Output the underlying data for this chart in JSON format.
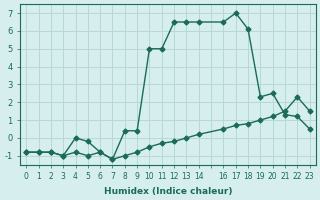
{
  "xlabel": "Humidex (Indice chaleur)",
  "ylabel": "",
  "bg_color": "#d6eeee",
  "grid_color": "#b8d8d8",
  "line_color": "#1a6b5a",
  "series1_x": [
    0,
    1,
    2,
    3,
    4,
    5,
    6,
    7,
    8,
    9,
    10,
    11,
    12,
    13,
    14,
    16,
    17,
    18,
    19,
    20,
    21,
    22,
    23
  ],
  "series1_y": [
    -0.8,
    -0.8,
    -0.8,
    -1.0,
    0.0,
    -0.2,
    -0.8,
    -1.2,
    0.4,
    0.4,
    5.0,
    5.0,
    6.5,
    6.5,
    6.5,
    6.5,
    7.0,
    6.1,
    2.3,
    2.5,
    1.3,
    1.2,
    0.5
  ],
  "series2_x": [
    0,
    1,
    2,
    3,
    4,
    5,
    6,
    7,
    8,
    9,
    10,
    11,
    12,
    13,
    14,
    16,
    17,
    18,
    19,
    20,
    21,
    22,
    23
  ],
  "series2_y": [
    -0.8,
    -0.8,
    -0.8,
    -1.0,
    -0.8,
    -1.0,
    -0.8,
    -1.2,
    -1.0,
    -0.8,
    -0.5,
    -0.3,
    -0.2,
    0.0,
    0.2,
    0.5,
    0.7,
    0.8,
    1.0,
    1.2,
    1.5,
    2.3,
    1.5
  ],
  "ylim": [
    -1.5,
    7.5
  ],
  "yticks": [
    -1,
    0,
    1,
    2,
    3,
    4,
    5,
    6,
    7
  ],
  "xticks": [
    0,
    1,
    2,
    3,
    4,
    5,
    6,
    7,
    8,
    9,
    10,
    11,
    12,
    13,
    14,
    15,
    16,
    17,
    18,
    19,
    20,
    21,
    22,
    23
  ],
  "xtick_labels": [
    "0",
    "1",
    "2",
    "3",
    "4",
    "5",
    "6",
    "7",
    "8",
    "9",
    "10",
    "11",
    "12",
    "13",
    "14",
    "",
    "16",
    "17",
    "18",
    "19",
    "20",
    "21",
    "22",
    "23"
  ]
}
